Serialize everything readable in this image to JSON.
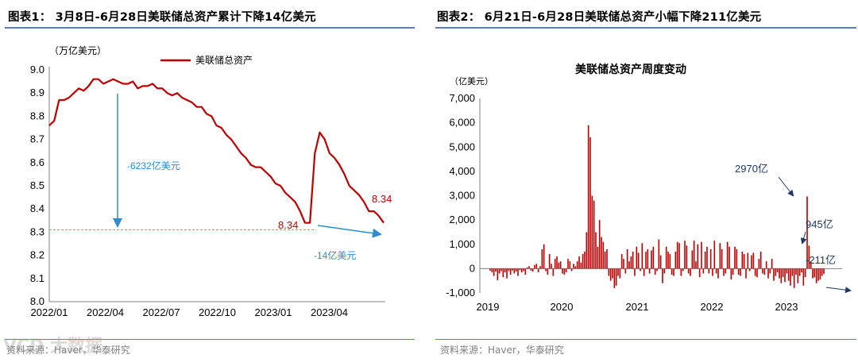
{
  "left": {
    "title": "图表1： 3月8日-6月28日美联储总资产累计下降14亿美元",
    "source": "资料来源：Haver，华泰研究",
    "unit": "（万亿美元）",
    "legend": "美联储总资产",
    "annotations": {
      "drop_label": "-6232亿美元",
      "small_drop_label": "-14亿美元",
      "start_value": "8.34",
      "end_value": "8.34"
    }
  },
  "right": {
    "title": "图表2： 6月21日-6月28日美联储总资产小幅下降211亿美元",
    "source": "资料来源：Haver，华泰研究",
    "inner_title": "美联储总资产周度变动",
    "unit": "（亿美元）",
    "annotations": {
      "peak": "2970亿",
      "second": "945亿",
      "last": "-211亿"
    }
  },
  "watermark": "VCD 大数据",
  "colors": {
    "series": "#c00000",
    "arrow": "#2e8ccf",
    "guide": "#6abf69",
    "rule": "#5b7fae"
  },
  "chart_data": [
    {
      "type": "line",
      "title": "",
      "ylabel": "（万亿美元）",
      "xlabel": "",
      "ylim": [
        8.0,
        9.0
      ],
      "yticks": [
        "9.0",
        "8.9",
        "8.8",
        "8.7",
        "8.6",
        "8.5",
        "8.4",
        "8.3",
        "8.2",
        "8.1",
        "8.0"
      ],
      "xticks": [
        "2022/01",
        "2022/04",
        "2022/07",
        "2022/10",
        "2023/01",
        "2023/04"
      ],
      "xrange": [
        "2022/01",
        "2023/06"
      ],
      "reference_line": 8.31,
      "series": [
        {
          "name": "美联储总资产",
          "values": [
            8.76,
            8.78,
            8.87,
            8.87,
            8.88,
            8.9,
            8.92,
            8.91,
            8.93,
            8.96,
            8.96,
            8.94,
            8.95,
            8.96,
            8.95,
            8.94,
            8.94,
            8.95,
            8.92,
            8.93,
            8.93,
            8.94,
            8.92,
            8.92,
            8.9,
            8.89,
            8.9,
            8.88,
            8.87,
            8.86,
            8.84,
            8.84,
            8.81,
            8.8,
            8.76,
            8.75,
            8.72,
            8.7,
            8.67,
            8.64,
            8.62,
            8.59,
            8.58,
            8.58,
            8.56,
            8.54,
            8.51,
            8.5,
            8.47,
            8.45,
            8.43,
            8.39,
            8.34,
            8.34,
            8.64,
            8.73,
            8.7,
            8.64,
            8.62,
            8.59,
            8.55,
            8.5,
            8.48,
            8.46,
            8.43,
            8.39,
            8.39,
            8.37,
            8.34
          ]
        }
      ]
    },
    {
      "type": "bar",
      "title": "美联储总资产周度变动",
      "ylabel": "（亿美元）",
      "xlabel": "",
      "ylim": [
        -1000,
        7000
      ],
      "yticks": [
        "7,000",
        "6,000",
        "5,000",
        "4,000",
        "3,000",
        "2,000",
        "1,000",
        "0",
        "-1,000"
      ],
      "xticks": [
        "2019",
        "2020",
        "2021",
        "2022",
        "2023"
      ],
      "series": [
        {
          "name": "",
          "values": [
            -80,
            -150,
            -300,
            -120,
            -480,
            -200,
            -100,
            -350,
            -150,
            -400,
            -100,
            -250,
            -80,
            -200,
            -120,
            -300,
            -60,
            -150,
            -100,
            -250,
            50,
            100,
            -80,
            -120,
            150,
            200,
            -150,
            100,
            800,
            1000,
            -100,
            -250,
            600,
            200,
            -300,
            400,
            500,
            250,
            300,
            -200,
            -250,
            -150,
            400,
            300,
            -100,
            200,
            100,
            300,
            500,
            250,
            600,
            700,
            1500,
            5900,
            5400,
            3000,
            2800,
            1500,
            900,
            2000,
            1300,
            1100,
            700,
            800,
            -300,
            -500,
            -400,
            -800,
            -700,
            -300,
            -400,
            600,
            400,
            -200,
            800,
            300,
            500,
            700,
            -300,
            900,
            650,
            -100,
            1050,
            -300,
            700,
            800,
            -200,
            750,
            900,
            -250,
            -100,
            1200,
            550,
            -600,
            -200,
            900,
            700,
            600,
            -250,
            -300,
            700,
            1100,
            1050,
            -300,
            -100,
            1150,
            950,
            -200,
            -300,
            750,
            1150,
            300,
            1000,
            -350,
            1100,
            -200,
            700,
            900,
            -200,
            800,
            -300,
            1150,
            -200,
            -400,
            1050,
            800,
            -300,
            -200,
            1100,
            900,
            -450,
            -250,
            900,
            800,
            -250,
            -300,
            700,
            600,
            -400,
            650,
            -100,
            550,
            650,
            -300,
            -350,
            400,
            700,
            -200,
            -250,
            300,
            -400,
            -200,
            400,
            -500,
            -300,
            -150,
            -400,
            -600,
            -350,
            -550,
            -200,
            -500,
            -700,
            -300,
            -800,
            -250,
            -600,
            -300,
            -150,
            -700,
            -350,
            2970,
            945,
            300,
            -400,
            -350,
            -600,
            -500,
            -450,
            -300,
            -211
          ]
        }
      ]
    }
  ]
}
